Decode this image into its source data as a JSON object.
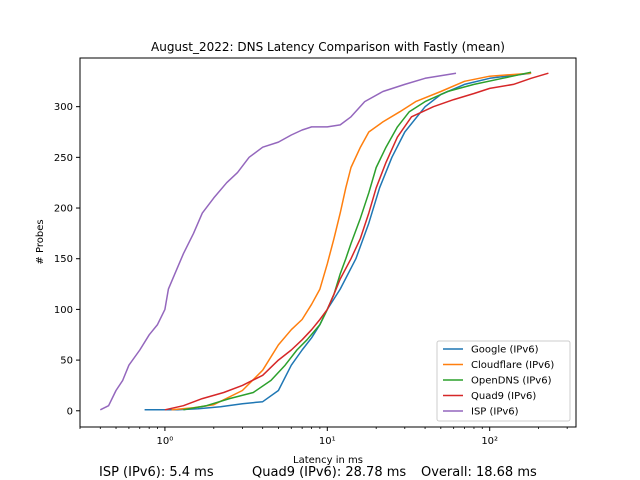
{
  "chart_data": {
    "type": "line",
    "title": "August_2022: DNS Latency Comparison with Fastly (mean)",
    "xlabel": "Latency in ms",
    "ylabel": "# Probes",
    "xscale": "log",
    "xlim": [
      0.3,
      340
    ],
    "ylim": [
      -16,
      348
    ],
    "xticks": [
      {
        "value": 1,
        "label": "10⁰"
      },
      {
        "value": 10,
        "label": "10¹"
      },
      {
        "value": 100,
        "label": "10²"
      }
    ],
    "yticks": [
      0,
      50,
      100,
      150,
      200,
      250,
      300
    ],
    "legend_position": "lower-right",
    "series": [
      {
        "name": "Google (IPv6)",
        "color": "#1f77b4",
        "points": [
          [
            0.75,
            1
          ],
          [
            1.2,
            1
          ],
          [
            1.6,
            2
          ],
          [
            2.2,
            4
          ],
          [
            3,
            7
          ],
          [
            4,
            9
          ],
          [
            5,
            20
          ],
          [
            6,
            45
          ],
          [
            7,
            60
          ],
          [
            8,
            72
          ],
          [
            9,
            85
          ],
          [
            10,
            100
          ],
          [
            12,
            120
          ],
          [
            15,
            150
          ],
          [
            18,
            185
          ],
          [
            21,
            220
          ],
          [
            25,
            250
          ],
          [
            30,
            275
          ],
          [
            40,
            300
          ],
          [
            50,
            312
          ],
          [
            70,
            322
          ],
          [
            100,
            328
          ],
          [
            180,
            333
          ]
        ]
      },
      {
        "name": "Cloudflare (IPv6)",
        "color": "#ff7f0e",
        "points": [
          [
            1.1,
            1
          ],
          [
            1.5,
            3
          ],
          [
            2,
            6
          ],
          [
            3,
            20
          ],
          [
            4,
            40
          ],
          [
            5,
            65
          ],
          [
            6,
            80
          ],
          [
            7,
            90
          ],
          [
            8,
            105
          ],
          [
            9,
            120
          ],
          [
            10,
            145
          ],
          [
            11,
            170
          ],
          [
            12,
            195
          ],
          [
            13,
            220
          ],
          [
            14,
            240
          ],
          [
            16,
            260
          ],
          [
            18,
            275
          ],
          [
            22,
            285
          ],
          [
            28,
            295
          ],
          [
            35,
            305
          ],
          [
            50,
            315
          ],
          [
            70,
            325
          ],
          [
            100,
            330
          ],
          [
            180,
            333
          ]
        ]
      },
      {
        "name": "OpenDNS (IPv6)",
        "color": "#2ca02c",
        "points": [
          [
            1.3,
            1
          ],
          [
            1.8,
            5
          ],
          [
            2.5,
            12
          ],
          [
            3.5,
            18
          ],
          [
            4.5,
            30
          ],
          [
            5.5,
            45
          ],
          [
            6.5,
            60
          ],
          [
            7.5,
            70
          ],
          [
            9,
            85
          ],
          [
            10,
            100
          ],
          [
            11,
            115
          ],
          [
            12,
            135
          ],
          [
            13,
            150
          ],
          [
            14,
            165
          ],
          [
            16,
            190
          ],
          [
            18,
            215
          ],
          [
            20,
            240
          ],
          [
            23,
            260
          ],
          [
            27,
            280
          ],
          [
            32,
            295
          ],
          [
            40,
            305
          ],
          [
            55,
            315
          ],
          [
            80,
            322
          ],
          [
            120,
            328
          ],
          [
            180,
            334
          ]
        ]
      },
      {
        "name": "Quad9 (IPv6)",
        "color": "#d62728",
        "points": [
          [
            1.0,
            1
          ],
          [
            1.3,
            5
          ],
          [
            1.7,
            12
          ],
          [
            2.3,
            18
          ],
          [
            3,
            25
          ],
          [
            4,
            35
          ],
          [
            5,
            50
          ],
          [
            6,
            60
          ],
          [
            7,
            70
          ],
          [
            8,
            80
          ],
          [
            9,
            90
          ],
          [
            10,
            100
          ],
          [
            11,
            115
          ],
          [
            12,
            130
          ],
          [
            14,
            150
          ],
          [
            16,
            170
          ],
          [
            18,
            195
          ],
          [
            20,
            220
          ],
          [
            23,
            245
          ],
          [
            27,
            270
          ],
          [
            33,
            290
          ],
          [
            45,
            300
          ],
          [
            60,
            307
          ],
          [
            80,
            313
          ],
          [
            100,
            318
          ],
          [
            140,
            322
          ],
          [
            180,
            328
          ],
          [
            230,
            333
          ]
        ]
      },
      {
        "name": "ISP (IPv6)",
        "color": "#9467bd",
        "points": [
          [
            0.4,
            1
          ],
          [
            0.45,
            5
          ],
          [
            0.5,
            20
          ],
          [
            0.55,
            30
          ],
          [
            0.6,
            45
          ],
          [
            0.7,
            60
          ],
          [
            0.8,
            75
          ],
          [
            0.9,
            85
          ],
          [
            1.0,
            100
          ],
          [
            1.05,
            120
          ],
          [
            1.15,
            135
          ],
          [
            1.3,
            155
          ],
          [
            1.5,
            175
          ],
          [
            1.7,
            195
          ],
          [
            2,
            210
          ],
          [
            2.4,
            225
          ],
          [
            2.8,
            235
          ],
          [
            3.3,
            250
          ],
          [
            4,
            260
          ],
          [
            5,
            265
          ],
          [
            6,
            272
          ],
          [
            7,
            277
          ],
          [
            8,
            280
          ],
          [
            10,
            280
          ],
          [
            12,
            282
          ],
          [
            14,
            290
          ],
          [
            17,
            305
          ],
          [
            22,
            315
          ],
          [
            30,
            322
          ],
          [
            40,
            328
          ],
          [
            62,
            333
          ]
        ]
      }
    ]
  },
  "footer": {
    "isp": "ISP (IPv6): 5.4 ms",
    "quad9": "Quad9 (IPv6): 28.78 ms",
    "overall": "Overall: 18.68 ms"
  }
}
